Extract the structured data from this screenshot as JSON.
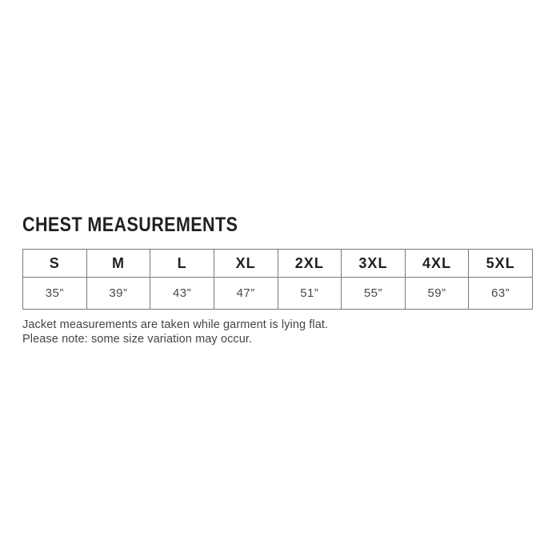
{
  "title": "CHEST MEASUREMENTS",
  "chart_data": {
    "type": "table",
    "title": "CHEST MEASUREMENTS",
    "columns": [
      "S",
      "M",
      "L",
      "XL",
      "2XL",
      "3XL",
      "4XL",
      "5XL"
    ],
    "rows": [
      [
        "35”",
        "39”",
        "43”",
        "47”",
        "51”",
        "55”",
        "59”",
        "63”"
      ]
    ],
    "units": "inches",
    "row_label": "chest measurement"
  },
  "note": {
    "line1": "Jacket measurements are taken while garment is lying flat.",
    "line2": "Please note: some size variation may occur."
  },
  "colors": {
    "background": "#ffffff",
    "title_text": "#231f20",
    "header_text": "#231f20",
    "value_text": "#48484a",
    "table_border": "#7a7a7a",
    "note_text": "#454547"
  }
}
